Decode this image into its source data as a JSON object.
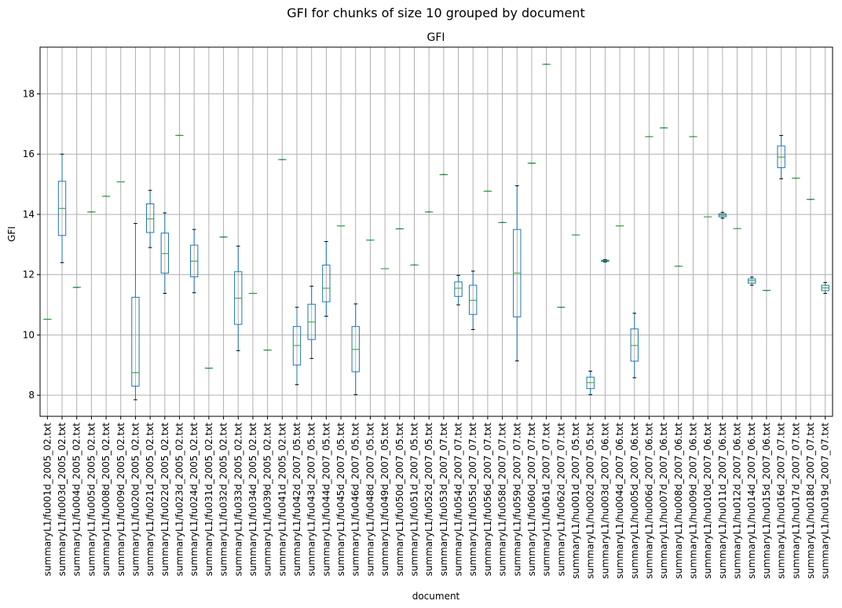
{
  "chart_data": {
    "type": "box",
    "title": "GFI for chunks of size 10 grouped by document",
    "subplot_title": "GFI",
    "xlabel": "document",
    "ylabel": "GFI",
    "ylim": [
      7.3,
      19.55
    ],
    "yticks": [
      8,
      10,
      12,
      14,
      16,
      18
    ],
    "grid": true,
    "colors": {
      "box": "#1f77b4",
      "median": "#2ca02c",
      "whisker": "#1f77b4",
      "cap": "#000000",
      "grid": "#b0b0b0"
    },
    "categories": [
      "summaryL1/fu001d_2005_02.txt",
      "summaryL1/fu003d_2005_02.txt",
      "summaryL1/fu004d_2005_02.txt",
      "summaryL1/fu005d_2005_02.txt",
      "summaryL1/fu008d_2005_02.txt",
      "summaryL1/fu009d_2005_02.txt",
      "summaryL1/fu020d_2005_02.txt",
      "summaryL1/fu021d_2005_02.txt",
      "summaryL1/fu022d_2005_02.txt",
      "summaryL1/fu023d_2005_02.txt",
      "summaryL1/fu024d_2005_02.txt",
      "summaryL1/fu031d_2005_02.txt",
      "summaryL1/fu032d_2005_02.txt",
      "summaryL1/fu033d_2005_02.txt",
      "summaryL1/fu034d_2005_02.txt",
      "summaryL1/fu039d_2005_02.txt",
      "summaryL1/fu041d_2005_02.txt",
      "summaryL1/fu042d_2007_05.txt",
      "summaryL1/fu043d_2007_05.txt",
      "summaryL1/fu044d_2007_05.txt",
      "summaryL1/fu045d_2007_05.txt",
      "summaryL1/fu046d_2007_05.txt",
      "summaryL1/fu048d_2007_05.txt",
      "summaryL1/fu049d_2007_05.txt",
      "summaryL1/fu050d_2007_05.txt",
      "summaryL1/fu051d_2007_05.txt",
      "summaryL1/fu052d_2007_05.txt",
      "summaryL1/fu053d_2007_07.txt",
      "summaryL1/fu054d_2007_07.txt",
      "summaryL1/fu055d_2007_07.txt",
      "summaryL1/fu056d_2007_07.txt",
      "summaryL1/fu058d_2007_07.txt",
      "summaryL1/fu059d_2007_07.txt",
      "summaryL1/fu060d_2007_07.txt",
      "summaryL1/fu061d_2007_07.txt",
      "summaryL1/fu062d_2007_07.txt",
      "summaryL1/hu001d_2007_05.txt",
      "summaryL1/hu002d_2007_05.txt",
      "summaryL1/hu003d_2007_06.txt",
      "summaryL1/hu004d_2007_06.txt",
      "summaryL1/hu005d_2007_06.txt",
      "summaryL1/hu006d_2007_06.txt",
      "summaryL1/hu007d_2007_06.txt",
      "summaryL1/hu008d_2007_06.txt",
      "summaryL1/hu009d_2007_06.txt",
      "summaryL1/hu010d_2007_06.txt",
      "summaryL1/hu011d_2007_06.txt",
      "summaryL1/hu012d_2007_06.txt",
      "summaryL1/hu014d_2007_06.txt",
      "summaryL1/hu015d_2007_06.txt",
      "summaryL1/hu016d_2007_07.txt",
      "summaryL1/hu017d_2007_07.txt",
      "summaryL1/hu018d_2007_07.txt",
      "summaryL1/hu019d_2007_07.txt"
    ],
    "boxes": [
      [
        10.52,
        10.52,
        10.52,
        10.52,
        10.52
      ],
      [
        12.4,
        13.3,
        14.2,
        15.1,
        16.0
      ],
      [
        11.58,
        11.58,
        11.58,
        11.58,
        11.58
      ],
      [
        14.08,
        14.08,
        14.08,
        14.08,
        14.08
      ],
      [
        14.6,
        14.6,
        14.6,
        14.6,
        14.6
      ],
      [
        15.08,
        15.08,
        15.08,
        15.08,
        15.08
      ],
      [
        7.85,
        8.3,
        8.75,
        11.25,
        13.7
      ],
      [
        12.9,
        13.4,
        13.85,
        14.35,
        14.8
      ],
      [
        11.38,
        12.05,
        12.7,
        13.38,
        14.05
      ],
      [
        16.62,
        16.62,
        16.62,
        16.62,
        16.62
      ],
      [
        11.4,
        11.93,
        12.45,
        12.98,
        13.5
      ],
      [
        8.9,
        8.9,
        8.9,
        8.9,
        8.9
      ],
      [
        13.25,
        13.25,
        13.25,
        13.25,
        13.25
      ],
      [
        9.48,
        10.35,
        11.22,
        12.1,
        12.95
      ],
      [
        11.38,
        11.38,
        11.38,
        11.38,
        11.38
      ],
      [
        9.5,
        9.5,
        9.5,
        9.5,
        9.5
      ],
      [
        15.82,
        15.82,
        15.82,
        15.82,
        15.82
      ],
      [
        8.35,
        9.0,
        9.65,
        10.28,
        10.92
      ],
      [
        9.22,
        9.85,
        10.43,
        11.02,
        11.62
      ],
      [
        10.62,
        11.1,
        11.55,
        12.32,
        13.1
      ],
      [
        13.62,
        13.62,
        13.62,
        13.62,
        13.62
      ],
      [
        8.02,
        8.78,
        9.52,
        10.28,
        11.03
      ],
      [
        13.15,
        13.15,
        13.15,
        13.15,
        13.15
      ],
      [
        12.2,
        12.2,
        12.2,
        12.2,
        12.2
      ],
      [
        13.52,
        13.52,
        13.52,
        13.52,
        13.52
      ],
      [
        12.32,
        12.32,
        12.32,
        12.32,
        12.32
      ],
      [
        14.08,
        14.08,
        14.08,
        14.08,
        14.08
      ],
      [
        15.32,
        15.32,
        15.32,
        15.32,
        15.32
      ],
      [
        11.0,
        11.28,
        11.55,
        11.76,
        11.98
      ],
      [
        10.18,
        10.68,
        11.15,
        11.65,
        12.12
      ],
      [
        14.77,
        14.77,
        14.77,
        14.77,
        14.77
      ],
      [
        13.73,
        13.73,
        13.73,
        13.73,
        13.73
      ],
      [
        9.14,
        10.6,
        12.05,
        13.5,
        14.95
      ],
      [
        15.7,
        15.7,
        15.7,
        15.7,
        15.7
      ],
      [
        18.98,
        18.98,
        18.98,
        18.98,
        18.98
      ],
      [
        10.92,
        10.92,
        10.92,
        10.92,
        10.92
      ],
      [
        13.32,
        13.32,
        13.32,
        13.32,
        13.32
      ],
      [
        8.02,
        8.22,
        8.42,
        8.6,
        8.8
      ],
      [
        12.42,
        12.44,
        12.46,
        12.48,
        12.5
      ],
      [
        13.62,
        13.62,
        13.62,
        13.62,
        13.62
      ],
      [
        8.58,
        9.13,
        9.65,
        10.2,
        10.72
      ],
      [
        16.58,
        16.58,
        16.58,
        16.58,
        16.58
      ],
      [
        16.87,
        16.87,
        16.87,
        16.87,
        16.87
      ],
      [
        12.28,
        12.28,
        12.28,
        12.28,
        12.28
      ],
      [
        16.58,
        16.58,
        16.58,
        16.58,
        16.58
      ],
      [
        13.92,
        13.92,
        13.92,
        13.92,
        13.92
      ],
      [
        13.87,
        13.92,
        13.97,
        14.02,
        14.07
      ],
      [
        13.53,
        13.53,
        13.53,
        13.53,
        13.53
      ],
      [
        11.65,
        11.72,
        11.8,
        11.86,
        11.92
      ],
      [
        11.48,
        11.48,
        11.48,
        11.48,
        11.48
      ],
      [
        15.18,
        15.55,
        15.9,
        16.27,
        16.62
      ],
      [
        15.2,
        15.2,
        15.2,
        15.2,
        15.2
      ],
      [
        14.5,
        14.5,
        14.5,
        14.5,
        14.5
      ],
      [
        11.38,
        11.47,
        11.56,
        11.65,
        11.74
      ]
    ]
  }
}
